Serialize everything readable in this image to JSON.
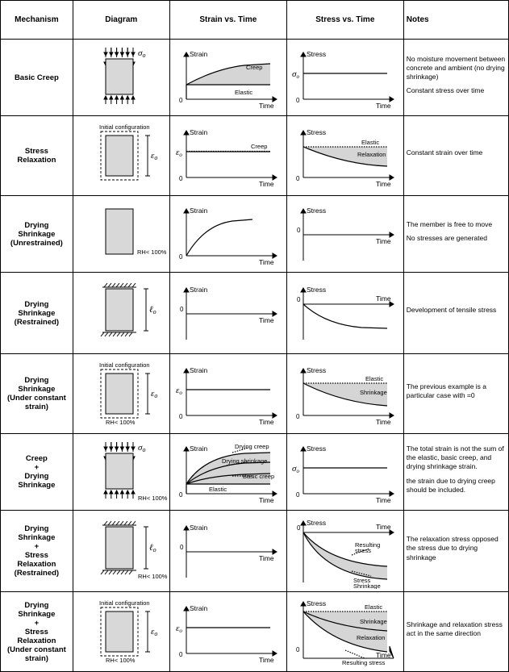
{
  "headers": [
    "Mechanism",
    "Diagram",
    "Strain vs. Time",
    "Stress vs. Time",
    "Notes"
  ],
  "colors": {
    "fill": "#d8d8d8",
    "shade": "#d5d5d5",
    "line": "#000000",
    "bg": "#ffffff"
  },
  "labels": {
    "strain": "Strain",
    "stress": "Stress",
    "time": "Time",
    "creep": "Creep",
    "elastic": "Elastic",
    "relaxation": "Relaxation",
    "dryingCreep": "Drying creep",
    "dryingShrinkage": "Drying shrinkage",
    "basicCreep": "Basic creep",
    "shrinkage": "Shrinkage",
    "resultingStress": "Resulting\nstress",
    "stressShrinkage": "Stress\nShrinkage",
    "initialConfig": "Initial configuration",
    "rh": "RH< 100%",
    "sigma0": "σₒ",
    "eps0": "εₒ",
    "ell0": "ℓₒ",
    "zero": "0"
  },
  "rows": [
    {
      "mechanism": "Basic Creep",
      "notes": [
        "No moisture movement between concrete and ambient (no drying shrinkage)",
        "Constant stress over time"
      ],
      "diagram": "loaded-block",
      "strainChart": "creep-elastic",
      "stressChart": "const-stress"
    },
    {
      "mechanism": "Stress\nRelaxation",
      "notes": [
        "Constant strain over time"
      ],
      "diagram": "strained-block",
      "strainChart": "const-strain-creep",
      "stressChart": "relaxation"
    },
    {
      "mechanism": "Drying\nShrinkage\n(Unrestrained)",
      "notes": [
        "The member is free to move",
        "No stresses are generated"
      ],
      "diagram": "free-block-rh",
      "strainChart": "rising-curve",
      "stressChart": "zero-stress"
    },
    {
      "mechanism": "Drying\nShrinkage\n(Restrained)",
      "notes": [
        "Development of tensile stress"
      ],
      "diagram": "restrained-block",
      "strainChart": "zero-strain",
      "stressChart": "tensile-curve"
    },
    {
      "mechanism": "Drying\nShrinkage\n(Under constant\nstrain)",
      "notes": [
        "The previous example is a particular case with  =0"
      ],
      "diagram": "strained-block-rh",
      "strainChart": "const-strain-plain",
      "stressChart": "elastic-shrinkage"
    },
    {
      "mechanism": "Creep\n+\nDrying\nShrinkage",
      "notes": [
        "The total strain is not the sum of the elastic, basic creep, and drying shrinkage strain.",
        "the strain due to drying creep should be included."
      ],
      "diagram": "loaded-block-rh",
      "strainChart": "creep-components",
      "stressChart": "const-stress"
    },
    {
      "mechanism": "Drying\nShrinkage\n+\nStress\nRelaxation\n(Restrained)",
      "notes": [
        "The relaxation stress opposed the stress due to drying shrinkage"
      ],
      "diagram": "restrained-block-rh",
      "strainChart": "zero-strain",
      "stressChart": "opposing-stress"
    },
    {
      "mechanism": "Drying\nShrinkage\n+\nStress\nRelaxation\n(Under constant\nstrain)",
      "notes": [
        "Shrinkage and relaxation stress act in the same direction"
      ],
      "diagram": "strained-block-rh",
      "strainChart": "const-strain-plain",
      "stressChart": "same-direction"
    }
  ]
}
